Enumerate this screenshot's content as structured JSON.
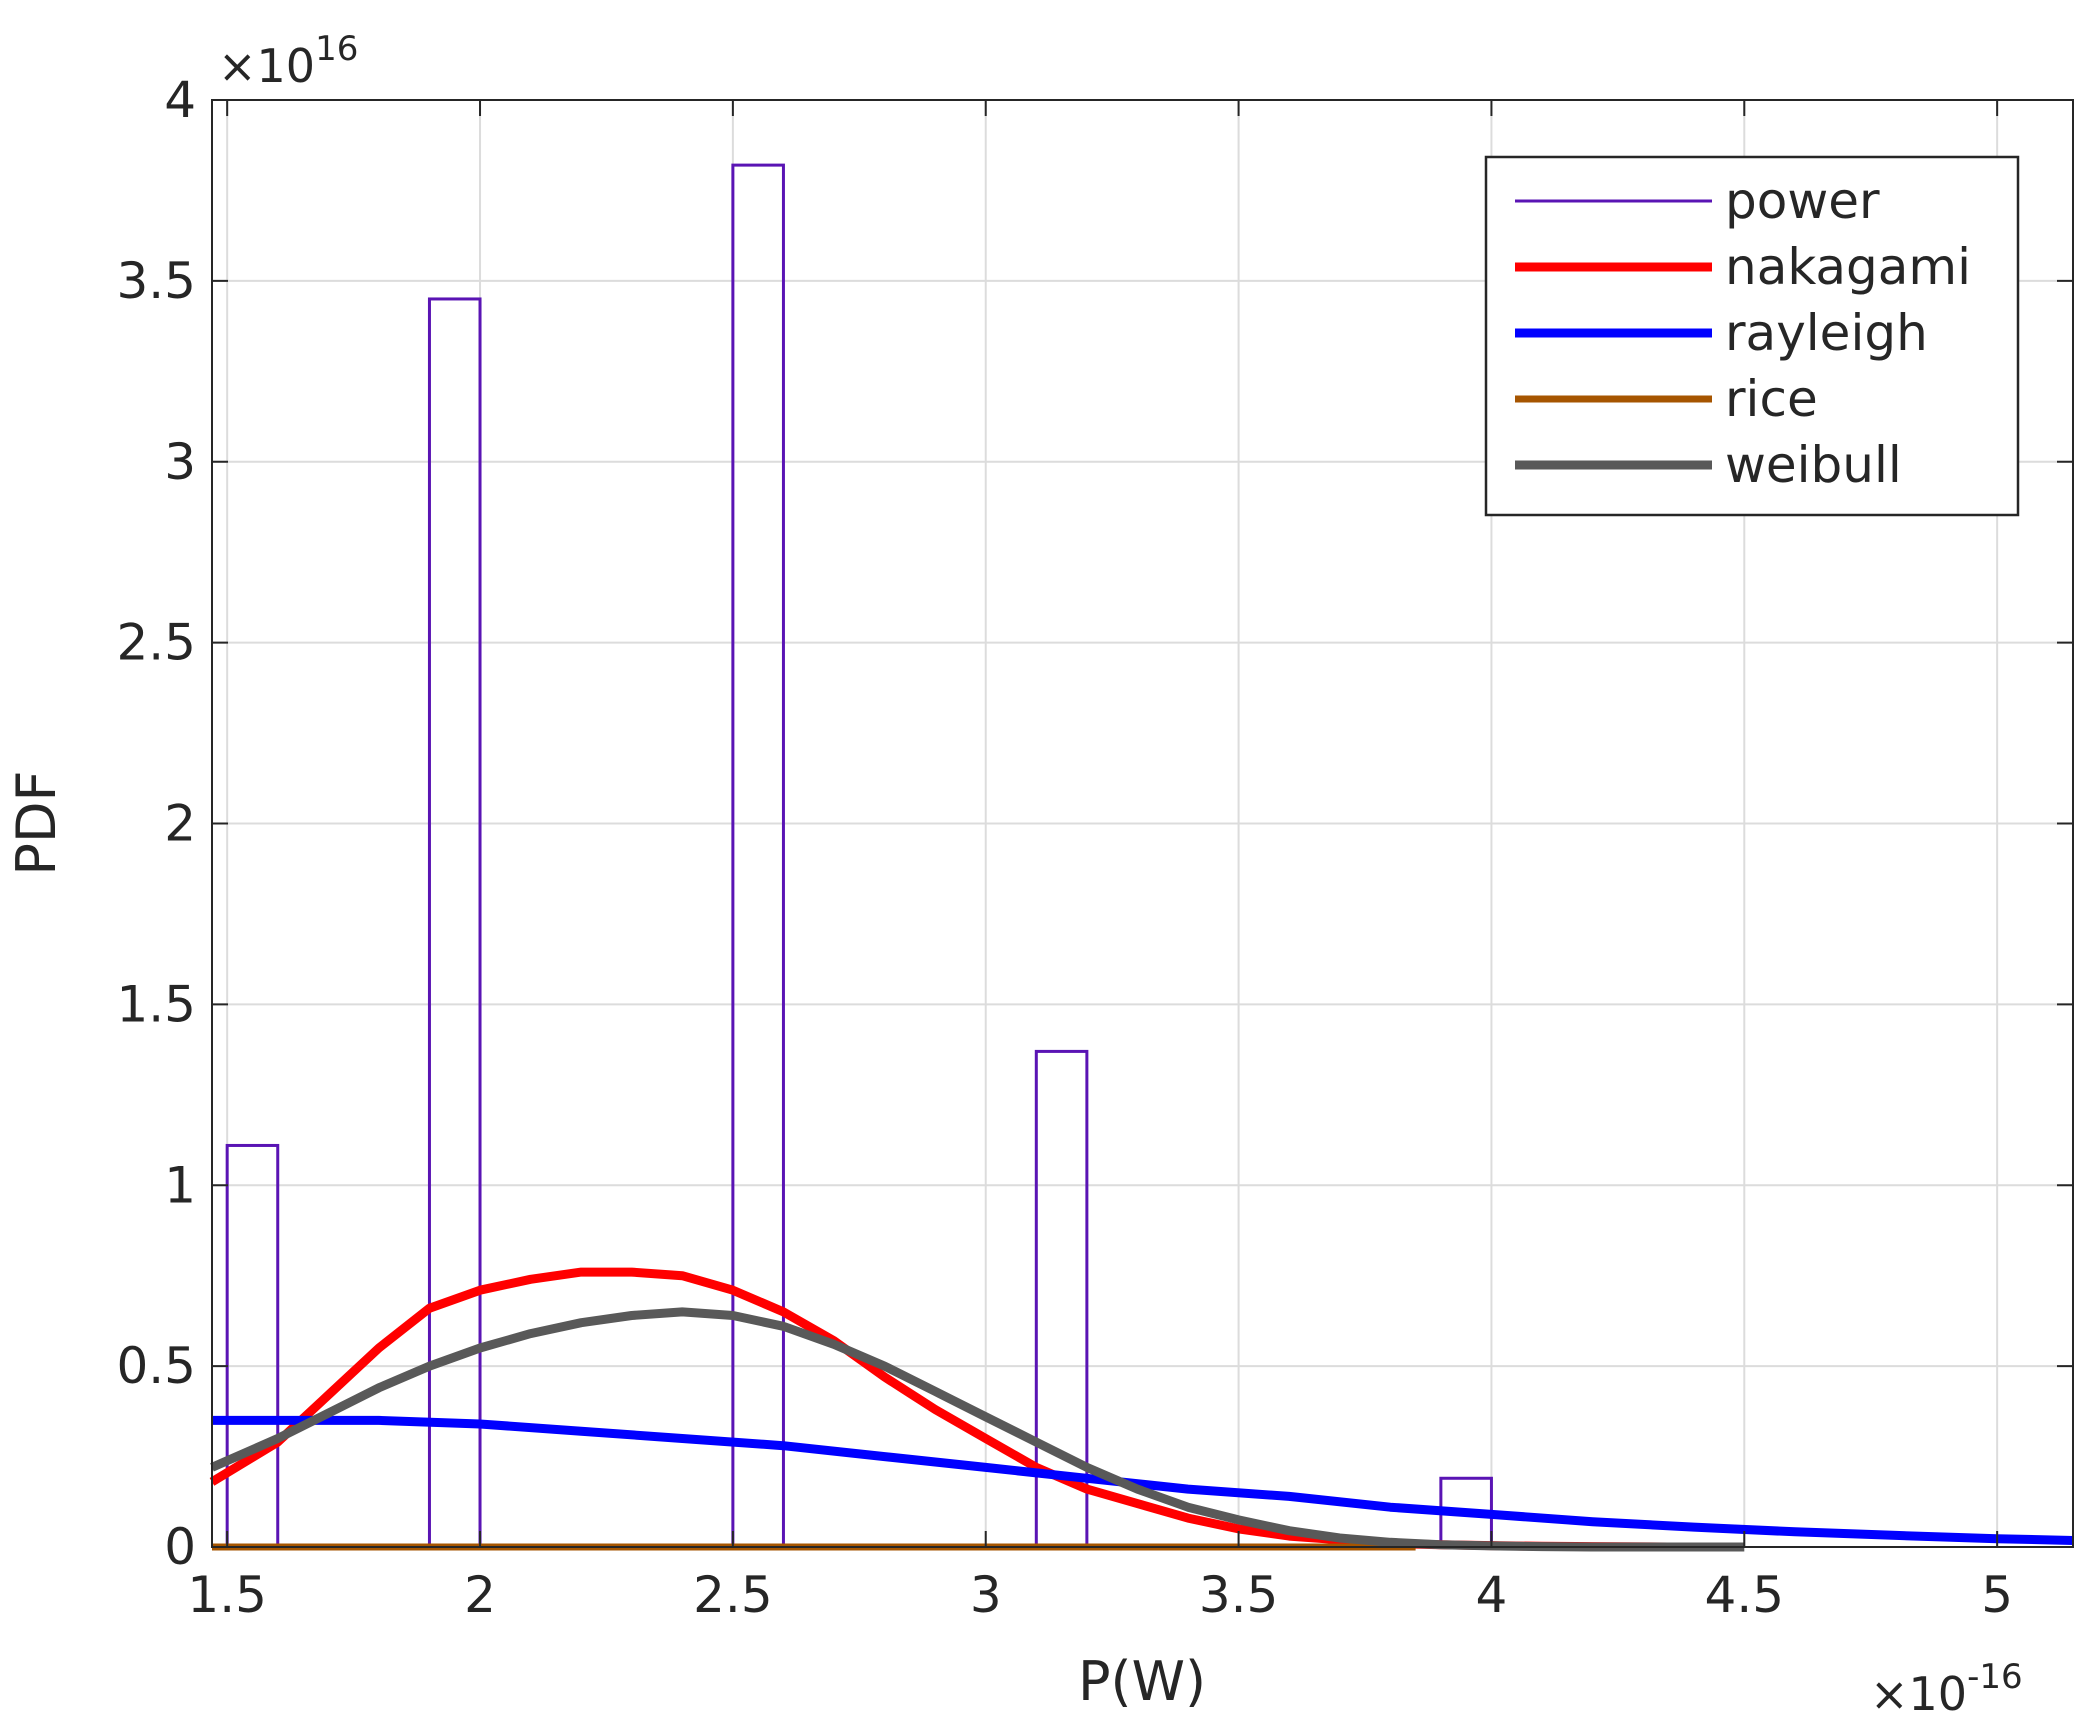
{
  "chart_data": {
    "type": "bar",
    "xlabel": "P(W)",
    "ylabel": "PDF",
    "x_exponent_prefix": "×10",
    "x_exponent": "-16",
    "y_exponent_prefix": "×10",
    "y_exponent": "16",
    "xlim": [
      1.47,
      5.15
    ],
    "ylim": [
      0,
      4
    ],
    "xticks": [
      1.5,
      2,
      2.5,
      3,
      3.5,
      4,
      4.5,
      5
    ],
    "xtick_labels": [
      "1.5",
      "2",
      "2.5",
      "3",
      "3.5",
      "4",
      "4.5",
      "5"
    ],
    "yticks": [
      0,
      0.5,
      1,
      1.5,
      2,
      2.5,
      3,
      3.5,
      4
    ],
    "ytick_labels": [
      "0",
      "0.5",
      "1",
      "1.5",
      "2",
      "2.5",
      "3",
      "3.5",
      "4"
    ],
    "grid": true,
    "legend_position": "top-right",
    "histogram": {
      "name": "power",
      "color": "#5a14b4",
      "bins": [
        {
          "x0": 1.5,
          "x1": 1.6,
          "value": 1.11
        },
        {
          "x0": 1.9,
          "x1": 2.0,
          "value": 3.45
        },
        {
          "x0": 2.5,
          "x1": 2.6,
          "value": 3.82
        },
        {
          "x0": 3.1,
          "x1": 3.2,
          "value": 1.37
        },
        {
          "x0": 3.9,
          "x1": 4.0,
          "value": 0.19
        }
      ]
    },
    "series": [
      {
        "name": "nakagami",
        "color": "#ff0000",
        "x": [
          1.47,
          1.6,
          1.7,
          1.8,
          1.9,
          2.0,
          2.1,
          2.2,
          2.3,
          2.4,
          2.5,
          2.6,
          2.7,
          2.8,
          2.9,
          3.0,
          3.1,
          3.2,
          3.3,
          3.4,
          3.5,
          3.6,
          3.7,
          3.8,
          3.9,
          4.0,
          4.1,
          4.2,
          4.35
        ],
        "values": [
          0.18,
          0.29,
          0.42,
          0.55,
          0.66,
          0.71,
          0.74,
          0.76,
          0.76,
          0.75,
          0.71,
          0.65,
          0.57,
          0.47,
          0.38,
          0.3,
          0.22,
          0.16,
          0.12,
          0.08,
          0.05,
          0.03,
          0.02,
          0.01,
          0.006,
          0.004,
          0.002,
          0.001,
          0.0
        ]
      },
      {
        "name": "rayleigh",
        "color": "#0000ff",
        "x": [
          1.47,
          1.6,
          1.8,
          2.0,
          2.2,
          2.4,
          2.6,
          2.8,
          3.0,
          3.2,
          3.4,
          3.6,
          3.8,
          4.0,
          4.2,
          4.4,
          4.6,
          4.8,
          5.0,
          5.15
        ],
        "values": [
          0.35,
          0.35,
          0.35,
          0.34,
          0.32,
          0.3,
          0.28,
          0.25,
          0.22,
          0.19,
          0.16,
          0.14,
          0.11,
          0.09,
          0.07,
          0.055,
          0.042,
          0.032,
          0.023,
          0.018
        ]
      },
      {
        "name": "rice",
        "color": "#a65500",
        "x": [
          1.47,
          3.85
        ],
        "values": [
          0.0,
          0.0
        ]
      },
      {
        "name": "weibull",
        "color": "#595959",
        "x": [
          1.47,
          1.6,
          1.7,
          1.8,
          1.9,
          2.0,
          2.1,
          2.2,
          2.3,
          2.4,
          2.5,
          2.6,
          2.7,
          2.8,
          2.9,
          3.0,
          3.1,
          3.2,
          3.3,
          3.4,
          3.5,
          3.6,
          3.7,
          3.8,
          3.9,
          4.0,
          4.1,
          4.2,
          4.3,
          4.5
        ],
        "values": [
          0.22,
          0.3,
          0.37,
          0.44,
          0.5,
          0.55,
          0.59,
          0.62,
          0.64,
          0.65,
          0.64,
          0.61,
          0.56,
          0.5,
          0.43,
          0.36,
          0.29,
          0.22,
          0.16,
          0.11,
          0.075,
          0.045,
          0.025,
          0.013,
          0.006,
          0.003,
          0.001,
          0.0,
          0.0,
          0.0
        ]
      }
    ]
  }
}
